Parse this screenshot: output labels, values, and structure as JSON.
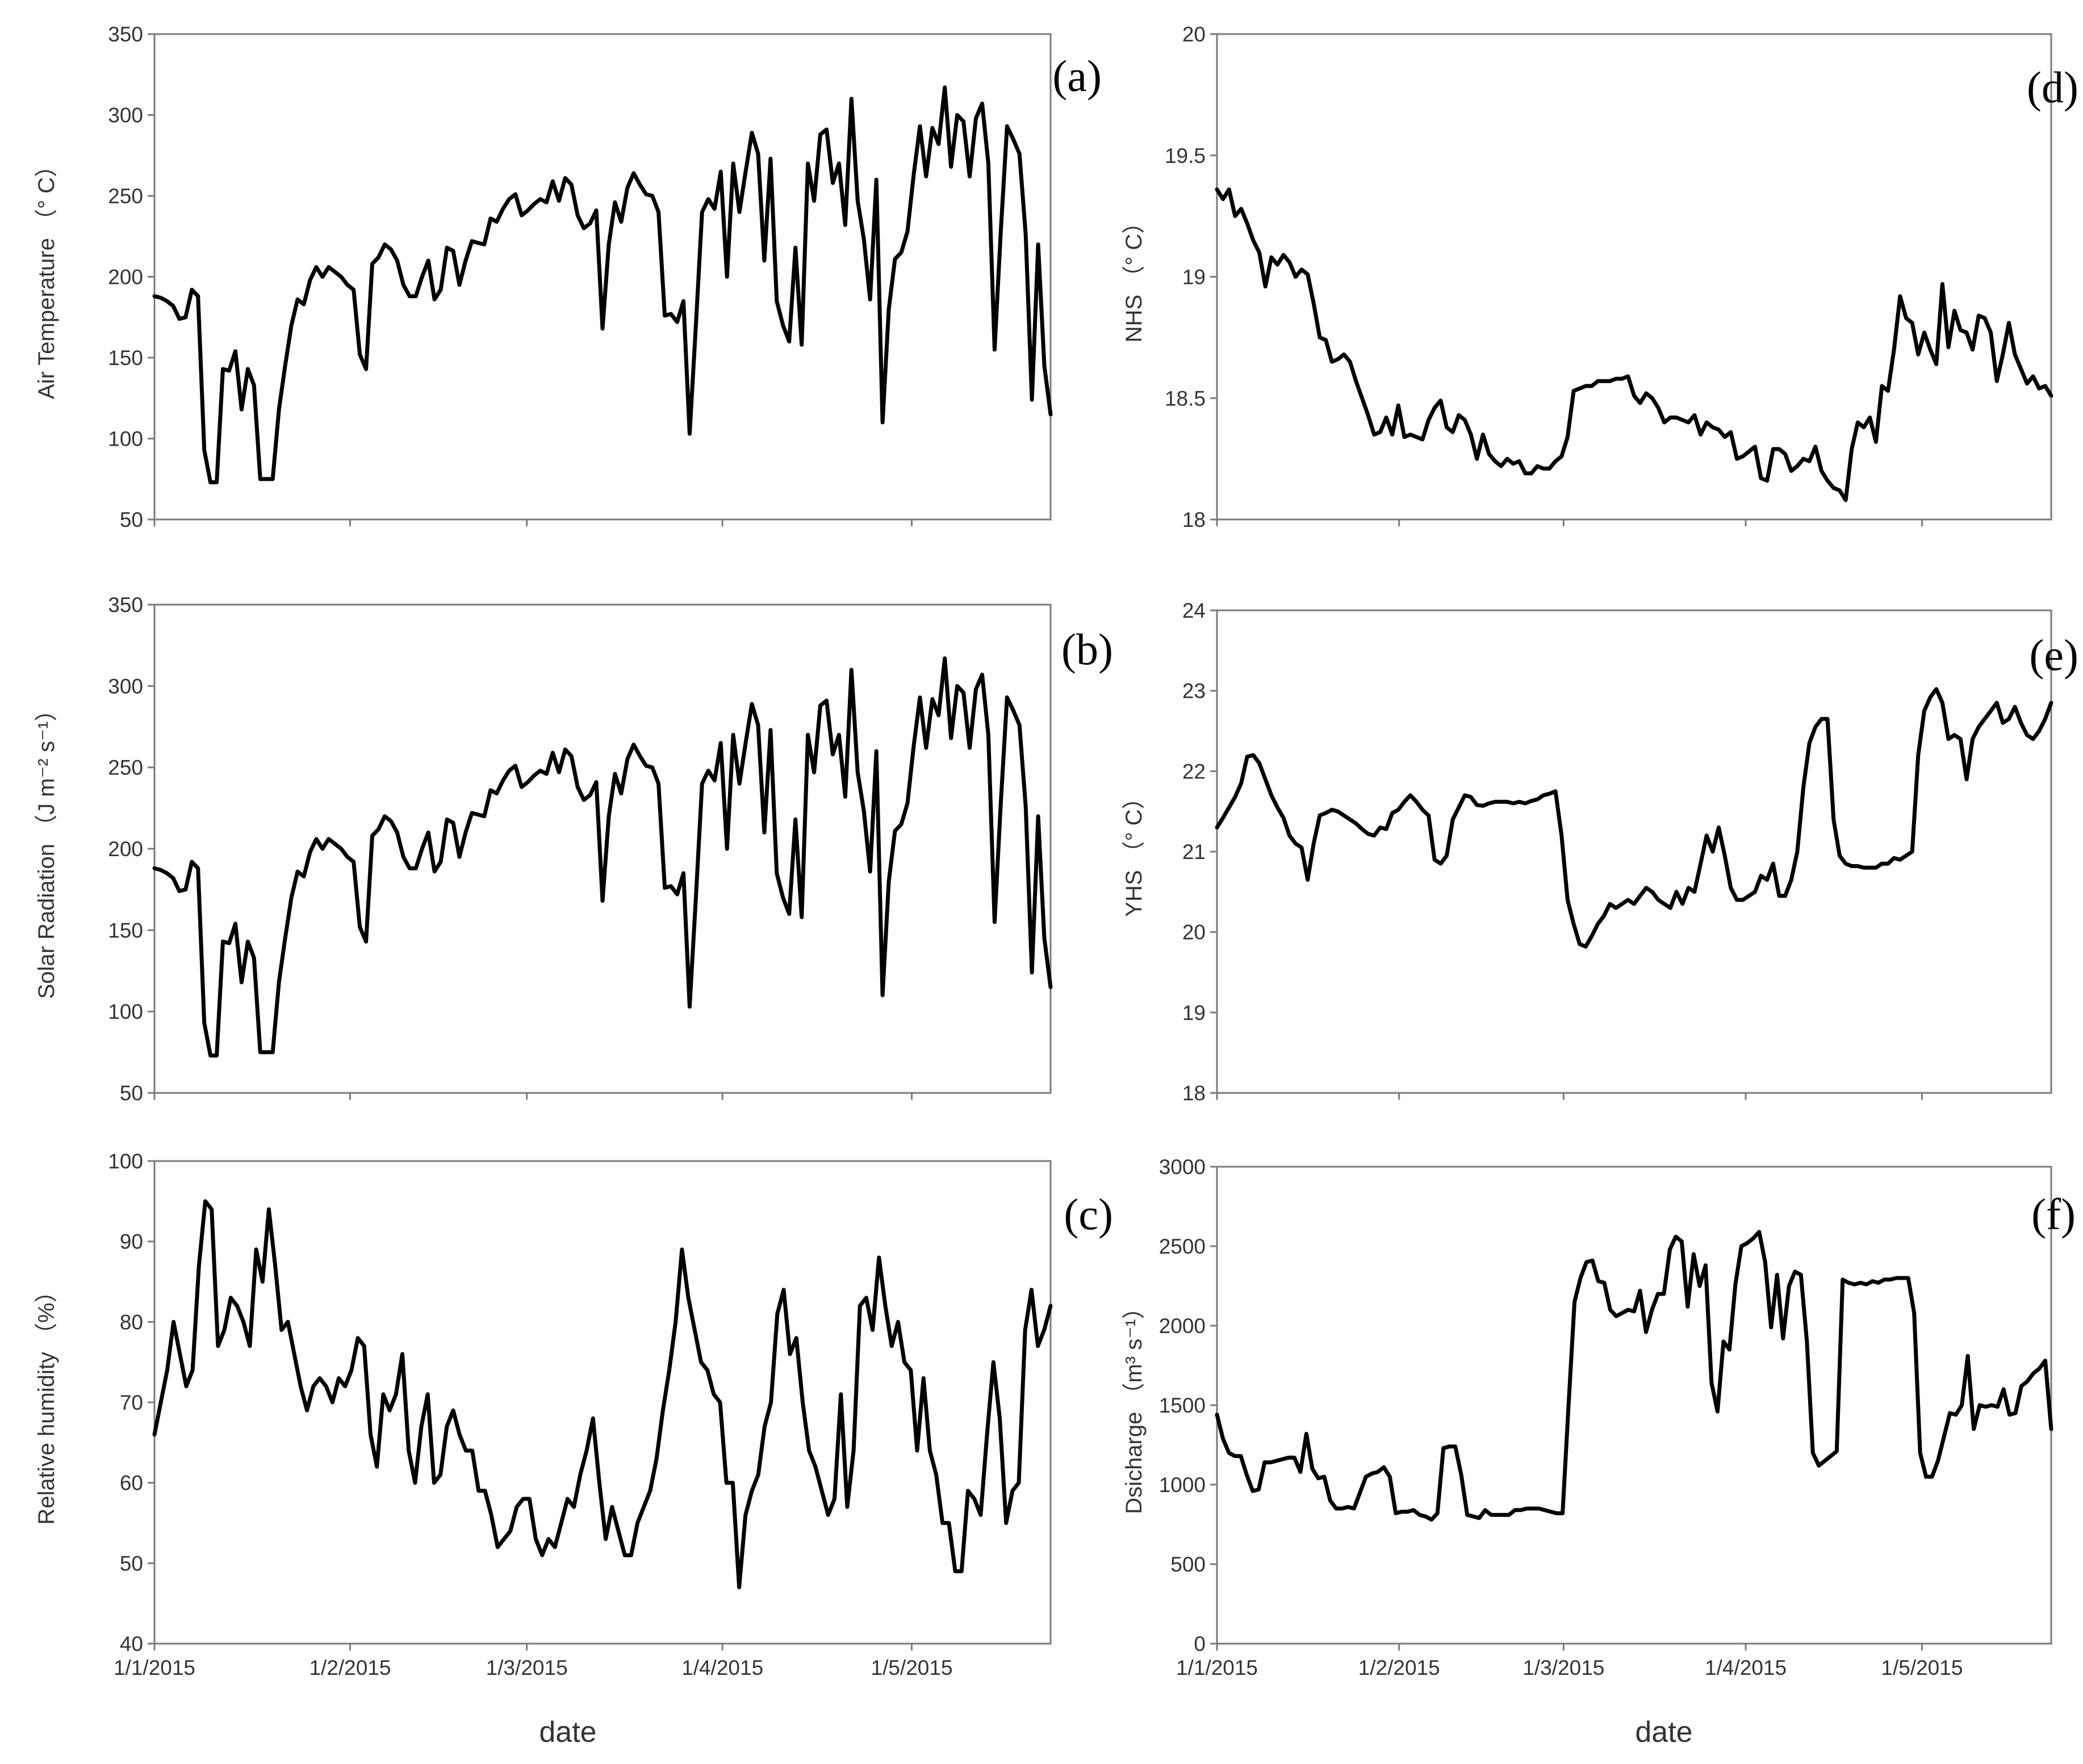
{
  "x_title": "date",
  "chart_data": [
    {
      "panel": "(a)",
      "type": "line",
      "ylabel": "Air Temperature （° C）",
      "ylim": [
        50,
        350
      ],
      "yticks": [
        50,
        100,
        150,
        200,
        250,
        300,
        350
      ],
      "xlabels": [],
      "x_tick_days": [
        0,
        31,
        59,
        90,
        120
      ],
      "x_range_days": [
        0,
        142
      ],
      "x_start": "1/1/2015",
      "x_end": "5/23/2015",
      "values": [
        188,
        187,
        185,
        182,
        174,
        175,
        192,
        188,
        93,
        73,
        73,
        143,
        142,
        154,
        118,
        143,
        133,
        75,
        75,
        75,
        118,
        145,
        170,
        186,
        183,
        198,
        206,
        200,
        206,
        203,
        200,
        195,
        192,
        152,
        143,
        208,
        212,
        220,
        217,
        210,
        195,
        188,
        188,
        200,
        210,
        186,
        192,
        218,
        216,
        195,
        210,
        222,
        221,
        220,
        236,
        234,
        242,
        248,
        251,
        238,
        241,
        245,
        248,
        246,
        259,
        247,
        261,
        257,
        238,
        230,
        233,
        241,
        168,
        220,
        246,
        234,
        255,
        264,
        257,
        251,
        250,
        240,
        176,
        177,
        172,
        185,
        103,
        170,
        240,
        248,
        242,
        265,
        200,
        270,
        240,
        265,
        289,
        276,
        210,
        273,
        185,
        170,
        160,
        218,
        158,
        270,
        247,
        288,
        291,
        258,
        270,
        232,
        310,
        247,
        223,
        186,
        260,
        110,
        180,
        211,
        215,
        228,
        263,
        293,
        262,
        292,
        282,
        317,
        268,
        300,
        296,
        262,
        298,
        307,
        270,
        155,
        228,
        293,
        285,
        276,
        226,
        124,
        220,
        145,
        115
      ]
    },
    {
      "panel": "(b)",
      "type": "line",
      "ylabel": "Solar Radiation （J m⁻² s⁻¹）",
      "ylim": [
        50,
        350
      ],
      "yticks": [
        50,
        100,
        150,
        200,
        250,
        300,
        350
      ],
      "xlabels": [],
      "x_tick_days": [
        0,
        31,
        59,
        90,
        120
      ],
      "x_range_days": [
        0,
        142
      ],
      "x_start": "1/1/2015",
      "x_end": "5/23/2015",
      "values": [
        188,
        187,
        185,
        182,
        174,
        175,
        192,
        188,
        93,
        73,
        73,
        143,
        142,
        154,
        118,
        143,
        133,
        75,
        75,
        75,
        118,
        145,
        170,
        186,
        183,
        198,
        206,
        200,
        206,
        203,
        200,
        195,
        192,
        152,
        143,
        208,
        212,
        220,
        217,
        210,
        195,
        188,
        188,
        200,
        210,
        186,
        192,
        218,
        216,
        195,
        210,
        222,
        221,
        220,
        236,
        234,
        242,
        248,
        251,
        238,
        241,
        245,
        248,
        246,
        259,
        247,
        261,
        257,
        238,
        230,
        233,
        241,
        168,
        220,
        246,
        234,
        255,
        264,
        257,
        251,
        250,
        240,
        176,
        177,
        172,
        185,
        103,
        170,
        240,
        248,
        242,
        265,
        200,
        270,
        240,
        265,
        289,
        276,
        210,
        273,
        185,
        170,
        160,
        218,
        158,
        270,
        247,
        288,
        291,
        258,
        270,
        232,
        310,
        247,
        223,
        186,
        260,
        110,
        180,
        211,
        215,
        228,
        263,
        293,
        262,
        292,
        282,
        317,
        268,
        300,
        296,
        262,
        298,
        307,
        270,
        155,
        228,
        293,
        285,
        276,
        226,
        124,
        220,
        145,
        115
      ]
    },
    {
      "panel": "(c)",
      "type": "line",
      "ylabel": "Relative humidity （%）",
      "ylim": [
        40,
        100
      ],
      "yticks": [
        40,
        50,
        60,
        70,
        80,
        90,
        100
      ],
      "xlabels": [
        "1/1/2015",
        "1/2/2015",
        "1/3/2015",
        "1/4/2015",
        "1/5/2015"
      ],
      "x_tick_days": [
        0,
        31,
        59,
        90,
        120
      ],
      "x_range_days": [
        0,
        142
      ],
      "x_start": "1/1/2015",
      "x_end": "5/23/2015",
      "values": [
        66,
        70,
        74,
        80,
        76,
        72,
        74,
        87,
        95,
        94,
        77,
        79,
        83,
        82,
        80,
        77,
        89,
        85,
        94,
        87,
        79,
        80,
        76,
        72,
        69,
        72,
        73,
        72,
        70,
        73,
        72,
        74,
        78,
        77,
        66,
        62,
        71,
        69,
        71,
        76,
        64,
        60,
        67,
        71,
        60,
        61,
        67,
        69,
        66,
        64,
        64,
        59,
        59,
        56,
        52,
        53,
        54,
        57,
        58,
        58,
        53,
        51,
        53,
        52,
        55,
        58,
        57,
        61,
        64,
        68,
        60,
        53,
        57,
        54,
        51,
        51,
        55,
        57,
        59,
        63,
        69,
        74,
        80,
        89,
        83,
        79,
        75,
        74,
        71,
        70,
        60,
        60,
        47,
        56,
        59,
        61,
        67,
        70,
        81,
        84,
        76,
        78,
        70,
        64,
        62,
        59,
        56,
        58,
        71,
        57,
        64,
        82,
        83,
        79,
        88,
        82,
        77,
        80,
        75,
        74,
        64,
        73,
        64,
        61,
        55,
        55,
        49,
        49,
        59,
        58,
        56,
        66,
        75,
        68,
        55,
        59,
        60,
        79,
        84,
        77,
        79,
        82
      ]
    },
    {
      "panel": "(d)",
      "type": "line",
      "ylabel": "NHS （° C）",
      "ylim": [
        18,
        20
      ],
      "yticks": [
        18,
        18.5,
        19,
        19.5,
        20
      ],
      "xlabels": [],
      "x_tick_days": [
        0,
        31,
        59,
        90,
        120
      ],
      "x_range_days": [
        0,
        142
      ],
      "x_start": "1/1/2015",
      "x_end": "5/23/2015",
      "values": [
        19.36,
        19.32,
        19.36,
        19.25,
        19.28,
        19.22,
        19.15,
        19.1,
        18.96,
        19.08,
        19.05,
        19.09,
        19.06,
        19.0,
        19.03,
        19.01,
        18.89,
        18.75,
        18.74,
        18.65,
        18.66,
        18.68,
        18.65,
        18.57,
        18.5,
        18.43,
        18.35,
        18.36,
        18.42,
        18.35,
        18.47,
        18.34,
        18.35,
        18.34,
        18.33,
        18.41,
        18.46,
        18.49,
        18.38,
        18.36,
        18.43,
        18.41,
        18.35,
        18.25,
        18.35,
        18.27,
        18.24,
        18.22,
        18.25,
        18.23,
        18.24,
        18.19,
        18.19,
        18.22,
        18.21,
        18.21,
        18.24,
        18.26,
        18.34,
        18.53,
        18.54,
        18.55,
        18.55,
        18.57,
        18.57,
        18.57,
        18.58,
        18.58,
        18.59,
        18.51,
        18.48,
        18.52,
        18.5,
        18.46,
        18.4,
        18.42,
        18.42,
        18.41,
        18.4,
        18.43,
        18.35,
        18.4,
        18.38,
        18.37,
        18.34,
        18.36,
        18.25,
        18.26,
        18.28,
        18.3,
        18.17,
        18.16,
        18.29,
        18.29,
        18.27,
        18.2,
        18.22,
        18.25,
        18.24,
        18.3,
        18.2,
        18.16,
        18.13,
        18.12,
        18.08,
        18.29,
        18.4,
        18.38,
        18.42,
        18.32,
        18.55,
        18.53,
        18.7,
        18.92,
        18.83,
        18.81,
        18.68,
        18.77,
        18.7,
        18.64,
        18.97,
        18.71,
        18.86,
        18.78,
        18.77,
        18.7,
        18.84,
        18.83,
        18.77,
        18.57,
        18.68,
        18.81,
        18.68,
        18.62,
        18.56,
        18.59,
        18.54,
        18.55,
        18.51
      ]
    },
    {
      "panel": "(e)",
      "type": "line",
      "ylabel": "YHS （° C）",
      "ylim": [
        18,
        24
      ],
      "yticks": [
        18,
        19,
        20,
        21,
        22,
        23,
        24
      ],
      "xlabels": [],
      "x_tick_days": [
        0,
        31,
        59,
        90,
        120
      ],
      "x_range_days": [
        0,
        142
      ],
      "x_start": "1/1/2015",
      "x_end": "5/23/2015",
      "values": [
        21.3,
        21.42,
        21.55,
        21.68,
        21.85,
        22.18,
        22.2,
        22.1,
        21.9,
        21.7,
        21.55,
        21.42,
        21.2,
        21.1,
        21.05,
        20.65,
        21.1,
        21.45,
        21.48,
        21.52,
        21.5,
        21.45,
        21.4,
        21.35,
        21.28,
        21.22,
        21.2,
        21.3,
        21.28,
        21.48,
        21.52,
        21.62,
        21.7,
        21.62,
        21.52,
        21.45,
        20.9,
        20.85,
        20.95,
        21.4,
        21.55,
        21.7,
        21.68,
        21.58,
        21.57,
        21.6,
        21.62,
        21.62,
        21.62,
        21.6,
        21.62,
        21.6,
        21.63,
        21.65,
        21.7,
        21.72,
        21.75,
        21.2,
        20.4,
        20.1,
        19.85,
        19.82,
        19.95,
        20.1,
        20.2,
        20.35,
        20.3,
        20.35,
        20.4,
        20.35,
        20.45,
        20.55,
        20.5,
        20.4,
        20.35,
        20.3,
        20.5,
        20.35,
        20.55,
        20.5,
        20.85,
        21.2,
        21.0,
        21.3,
        20.95,
        20.55,
        20.4,
        20.4,
        20.45,
        20.5,
        20.7,
        20.65,
        20.85,
        20.45,
        20.45,
        20.65,
        21.0,
        21.8,
        22.35,
        22.55,
        22.65,
        22.65,
        21.4,
        20.95,
        20.85,
        20.82,
        20.82,
        20.8,
        20.8,
        20.8,
        20.85,
        20.85,
        20.92,
        20.9,
        20.95,
        21.0,
        22.2,
        22.75,
        22.92,
        23.02,
        22.85,
        22.4,
        22.45,
        22.4,
        21.9,
        22.4,
        22.55,
        22.65,
        22.75,
        22.85,
        22.6,
        22.65,
        22.8,
        22.6,
        22.45,
        22.4,
        22.5,
        22.65,
        22.85
      ]
    },
    {
      "panel": "(f)",
      "type": "line",
      "ylabel": "Dsicharge （m³ s⁻¹）",
      "ylim": [
        0,
        3000
      ],
      "yticks": [
        0,
        500,
        1000,
        1500,
        2000,
        2500,
        3000
      ],
      "xlabels": [
        "1/1/2015",
        "1/2/2015",
        "1/3/2015",
        "1/4/2015",
        "1/5/2015"
      ],
      "x_tick_days": [
        0,
        31,
        59,
        90,
        120
      ],
      "x_range_days": [
        0,
        142
      ],
      "x_start": "1/1/2015",
      "x_end": "5/23/2015",
      "values": [
        1440,
        1290,
        1200,
        1180,
        1180,
        1060,
        960,
        970,
        1140,
        1140,
        1150,
        1160,
        1170,
        1170,
        1080,
        1320,
        1100,
        1040,
        1050,
        900,
        850,
        850,
        860,
        850,
        950,
        1050,
        1070,
        1080,
        1110,
        1050,
        820,
        830,
        830,
        840,
        810,
        800,
        780,
        820,
        1230,
        1240,
        1240,
        1060,
        810,
        800,
        790,
        840,
        810,
        810,
        810,
        810,
        840,
        840,
        850,
        850,
        850,
        840,
        830,
        820,
        820,
        1500,
        2150,
        2300,
        2400,
        2410,
        2280,
        2270,
        2100,
        2060,
        2080,
        2100,
        2090,
        2220,
        1960,
        2100,
        2200,
        2200,
        2480,
        2560,
        2530,
        2120,
        2450,
        2250,
        2380,
        1640,
        1460,
        1900,
        1850,
        2260,
        2500,
        2520,
        2550,
        2590,
        2400,
        1990,
        2320,
        1920,
        2250,
        2340,
        2320,
        1900,
        1200,
        1120,
        1150,
        1180,
        1210,
        2290,
        2270,
        2260,
        2270,
        2260,
        2280,
        2270,
        2290,
        2290,
        2300,
        2300,
        2300,
        2080,
        1200,
        1050,
        1050,
        1150,
        1300,
        1450,
        1440,
        1500,
        1810,
        1350,
        1500,
        1490,
        1500,
        1490,
        1600,
        1440,
        1450,
        1620,
        1650,
        1700,
        1730,
        1780,
        1350
      ]
    }
  ]
}
